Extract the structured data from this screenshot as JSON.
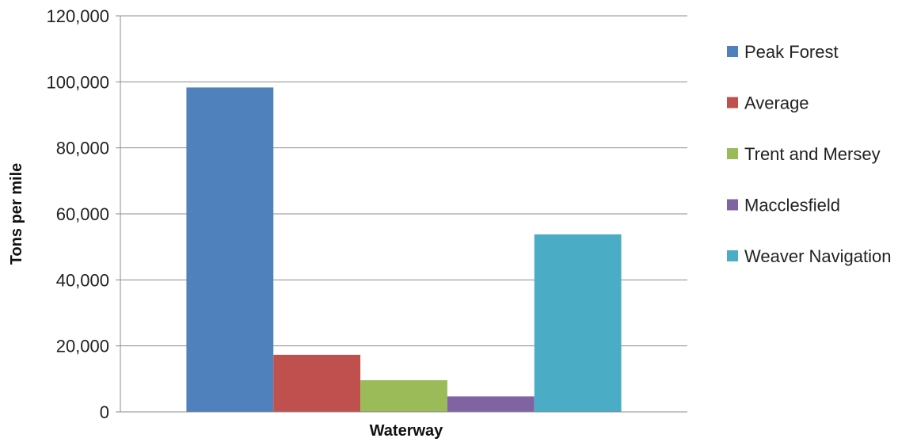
{
  "chart_data": {
    "type": "bar",
    "title": "",
    "xlabel": "Waterway",
    "ylabel": "Tons per mile",
    "ylim": [
      0,
      120000
    ],
    "yticks": [
      0,
      20000,
      40000,
      60000,
      80000,
      100000,
      120000
    ],
    "ytick_labels": [
      "0",
      "20,000",
      "40,000",
      "60,000",
      "80,000",
      "100,000",
      "120,000"
    ],
    "grid": true,
    "legend_position": "right",
    "series": [
      {
        "name": "Peak Forest",
        "value": 98300,
        "color": "#4F81BD"
      },
      {
        "name": "Average",
        "value": 17300,
        "color": "#C0504D"
      },
      {
        "name": "Trent and Mersey",
        "value": 9600,
        "color": "#9BBB59"
      },
      {
        "name": "Macclesfield",
        "value": 4700,
        "color": "#8064A2"
      },
      {
        "name": "Weaver Navigation",
        "value": 53800,
        "color": "#4BACC6"
      }
    ]
  }
}
